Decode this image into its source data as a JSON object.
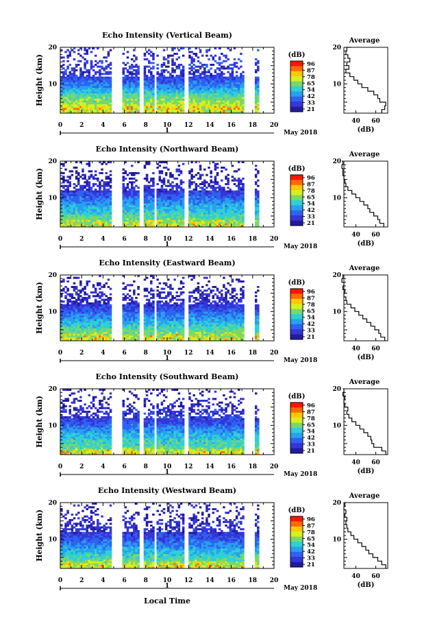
{
  "colorbar": {
    "unit": "(dB)",
    "ticks": [
      "96",
      "87",
      "78",
      "65",
      "54",
      "42",
      "33",
      "21"
    ],
    "colors": [
      "#ff1500",
      "#ff6a00",
      "#ffc800",
      "#d7ef20",
      "#7ad86a",
      "#2fd0d6",
      "#28a0f0",
      "#2f62f0",
      "#3535d8",
      "#221ba0"
    ]
  },
  "time_axis": {
    "ticks": [
      "0",
      "2",
      "4",
      "6",
      "8",
      "10",
      "12",
      "14",
      "16",
      "18",
      "20"
    ],
    "day_label": "1",
    "month_label": "May 2018",
    "xlabel": "Local Time"
  },
  "average_panel": {
    "title": "Average",
    "xticks": [
      "40",
      "60"
    ],
    "xlabel": "(dB)"
  },
  "chart_data": [
    {
      "type": "heatmap",
      "title": "Echo Intensity (Vertical Beam)",
      "ylabel": "Height (km)",
      "yticks": [
        "20",
        "10"
      ],
      "xlim": [
        0,
        20
      ],
      "ylim": [
        2,
        20
      ],
      "avg_profile": {
        "heights": [
          2,
          3,
          4,
          5,
          6,
          7,
          8,
          9,
          10,
          11,
          12,
          13,
          14,
          15,
          16,
          17,
          18,
          19,
          20
        ],
        "values": [
          66,
          69,
          70,
          64,
          62,
          58,
          52,
          46,
          42,
          38,
          34,
          30,
          33,
          31,
          34,
          32,
          30,
          31,
          35
        ]
      }
    },
    {
      "type": "heatmap",
      "title": "Echo Intensity (Northward Beam)",
      "ylabel": "Height (km)",
      "yticks": [
        "20",
        "10"
      ],
      "xlim": [
        0,
        20
      ],
      "ylim": [
        2,
        20
      ],
      "avg_profile": {
        "heights": [
          2,
          3,
          4,
          5,
          6,
          7,
          8,
          9,
          10,
          11,
          12,
          13,
          14,
          15,
          16,
          17,
          18,
          19,
          20
        ],
        "values": [
          68,
          64,
          62,
          58,
          54,
          52,
          48,
          44,
          40,
          36,
          32,
          30,
          29,
          28,
          27,
          27,
          26,
          27,
          26
        ]
      }
    },
    {
      "type": "heatmap",
      "title": "Echo Intensity (Eastward Beam)",
      "ylabel": "Height (km)",
      "yticks": [
        "20",
        "10"
      ],
      "xlim": [
        0,
        20
      ],
      "ylim": [
        2,
        20
      ],
      "avg_profile": {
        "heights": [
          2,
          3,
          4,
          5,
          6,
          7,
          8,
          9,
          10,
          11,
          12,
          13,
          14,
          15,
          16,
          17,
          18,
          19,
          20
        ],
        "values": [
          69,
          65,
          63,
          59,
          55,
          51,
          47,
          43,
          39,
          35,
          31,
          30,
          28,
          29,
          27,
          28,
          26,
          27,
          28
        ]
      }
    },
    {
      "type": "heatmap",
      "title": "Echo Intensity (Southward Beam)",
      "ylabel": "Height (km)",
      "yticks": [
        "20",
        "10"
      ],
      "xlim": [
        0,
        20
      ],
      "ylim": [
        2,
        20
      ],
      "avg_profile": {
        "heights": [
          2,
          3,
          4,
          5,
          6,
          7,
          8,
          9,
          10,
          11,
          12,
          13,
          14,
          15,
          16,
          17,
          18,
          19,
          20
        ],
        "values": [
          70,
          66,
          58,
          56,
          55,
          52,
          48,
          44,
          40,
          36,
          33,
          31,
          32,
          29,
          28,
          29,
          27,
          28,
          27
        ]
      }
    },
    {
      "type": "heatmap",
      "title": "Echo Intensity (Westward Beam)",
      "ylabel": "Height (km)",
      "yticks": [
        "20",
        "10"
      ],
      "xlim": [
        0,
        20
      ],
      "ylim": [
        2,
        20
      ],
      "avg_profile": {
        "heights": [
          2,
          3,
          4,
          5,
          6,
          7,
          8,
          9,
          10,
          11,
          12,
          13,
          14,
          15,
          16,
          17,
          18,
          19,
          20
        ],
        "values": [
          70,
          66,
          62,
          57,
          53,
          50,
          46,
          42,
          38,
          35,
          32,
          31,
          30,
          31,
          29,
          30,
          28,
          29,
          30
        ]
      }
    }
  ]
}
